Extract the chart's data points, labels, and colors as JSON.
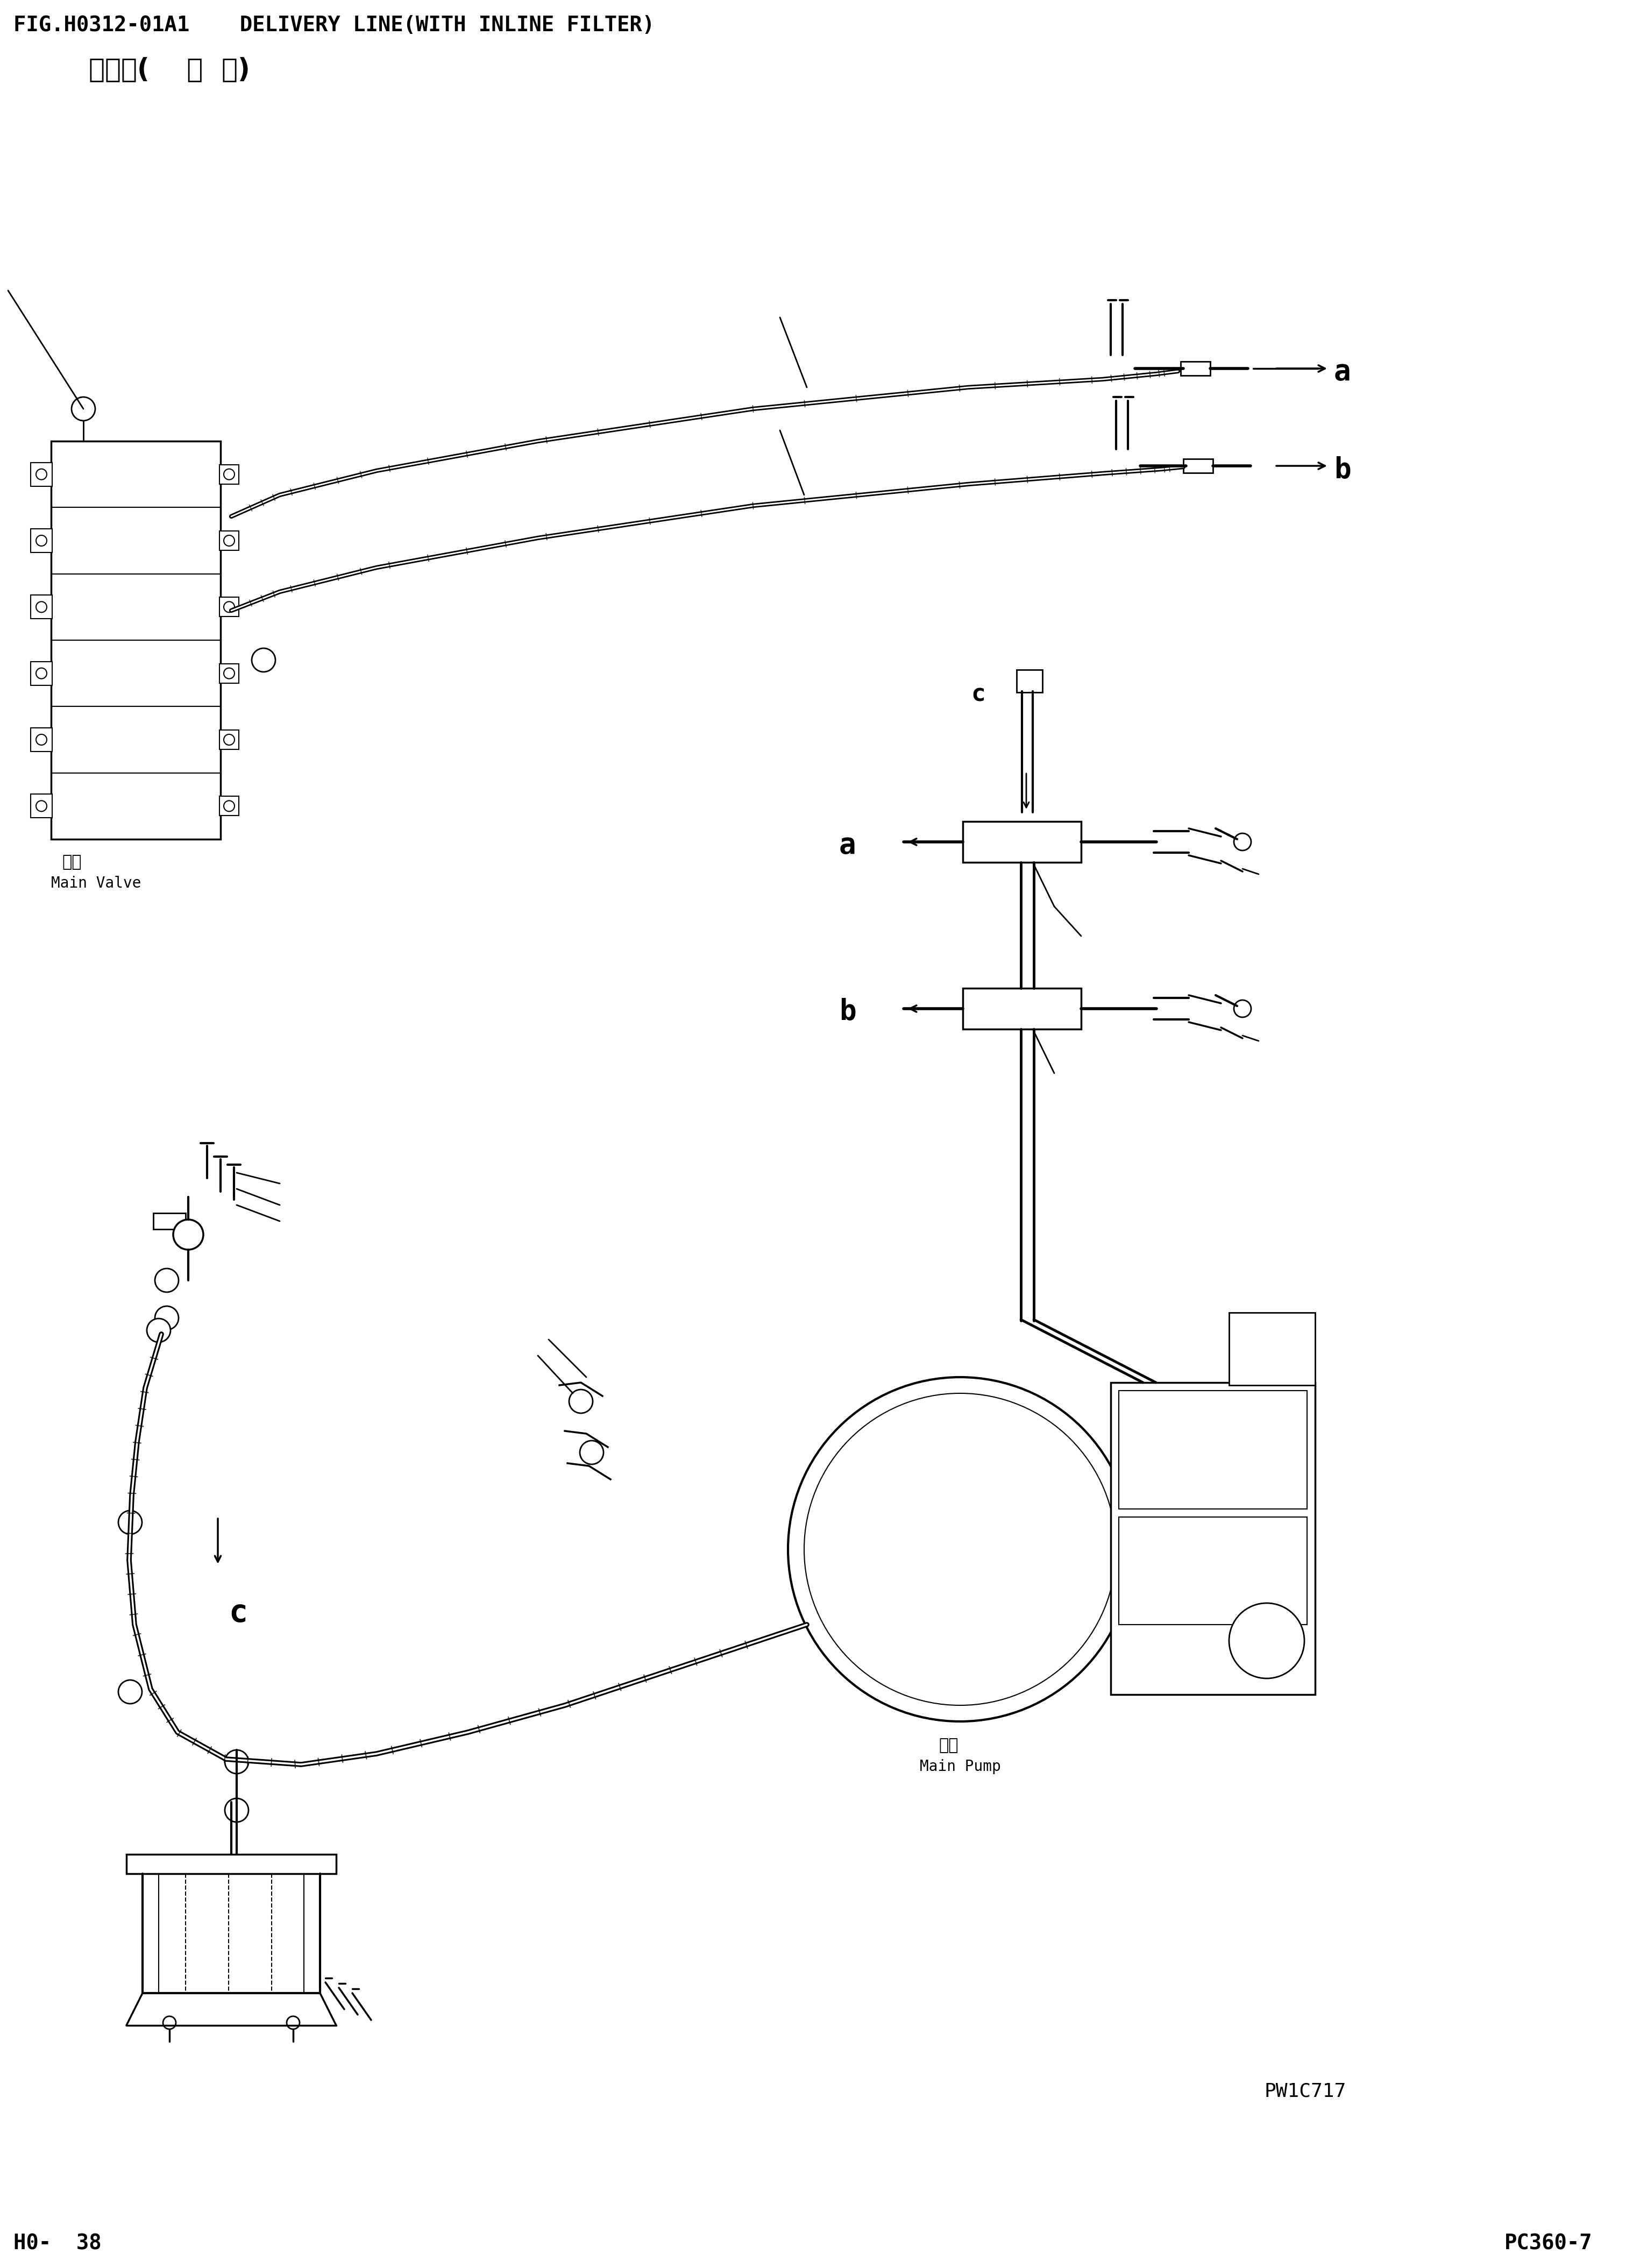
{
  "title_line1": "FIG.H0312-01A1    DELIVERY LINE(WITH INLINE FILTER)",
  "title_line2": "油管路(    油  芯)",
  "bottom_left": "H0-  38",
  "bottom_right": "PC360-7",
  "watermark": "PW1C717",
  "bg_color": "#ffffff",
  "line_color": "#000000",
  "main_valve_cn": "主阀",
  "main_valve_en": "Main Valve",
  "main_pump_cn": "主泵",
  "main_pump_en": "Main Pump",
  "label_a1": "a",
  "label_b1": "b",
  "label_c1": "c",
  "label_a2": "a",
  "label_b2": "b",
  "label_c2": "c",
  "fig_width": 3036,
  "fig_height": 4216,
  "dpi": 100
}
